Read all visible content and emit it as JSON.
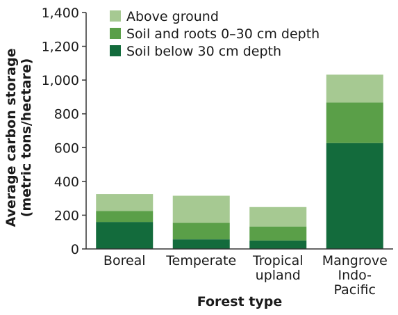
{
  "chart_data": {
    "type": "bar",
    "stacked": true,
    "title": "",
    "xlabel": "Forest type",
    "ylabel": [
      "Average carbon storage",
      "(metric tons/hectare)"
    ],
    "ylim": [
      0,
      1400
    ],
    "yticks": [
      0,
      200,
      400,
      600,
      800,
      1000,
      1200,
      1400
    ],
    "ytick_labels": [
      "0",
      "200",
      "400",
      "600",
      "800",
      "1,000",
      "1,200",
      "1,400"
    ],
    "categories": [
      [
        "Boreal"
      ],
      [
        "Temperate"
      ],
      [
        "Tropical",
        "upland"
      ],
      [
        "Mangrove",
        "Indo-",
        "Pacific"
      ]
    ],
    "series": [
      {
        "name": "Soil below 30 cm depth",
        "color": "#136b3c",
        "values": [
          160,
          57,
          50,
          627
        ]
      },
      {
        "name": "Soil and roots 0–30 cm depth",
        "color": "#5a9f48",
        "values": [
          65,
          98,
          83,
          240
        ]
      },
      {
        "name": "Above ground",
        "color": "#a6c992",
        "values": [
          100,
          160,
          115,
          165
        ]
      }
    ],
    "legend": {
      "placement": "top-left",
      "order": [
        "Above ground",
        "Soil and roots 0–30 cm depth",
        "Soil below 30 cm depth"
      ]
    },
    "grid": false
  }
}
